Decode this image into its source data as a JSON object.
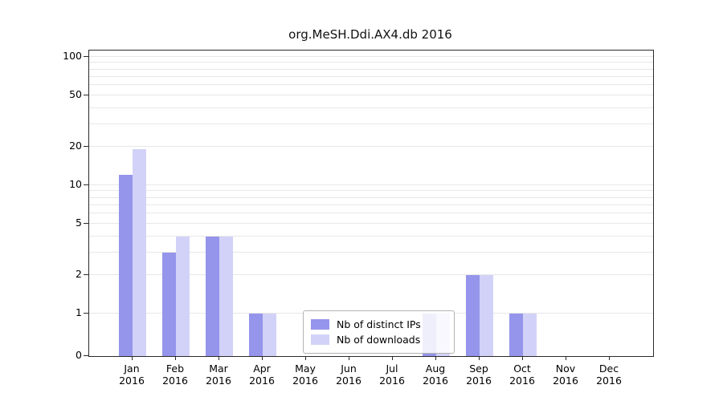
{
  "title": "org.MeSH.Ddi.AX4.db 2016",
  "colors": {
    "ips": "#9595ec",
    "downloads": "#d2d2f8",
    "grid": "#e7e7e7",
    "axis": "#2a2a2a"
  },
  "legend": {
    "items": [
      {
        "label": "Nb of distinct IPs",
        "series": "ips"
      },
      {
        "label": "Nb of downloads",
        "series": "downloads"
      }
    ]
  },
  "chart_data": {
    "type": "bar",
    "title": "org.MeSH.Ddi.AX4.db 2016",
    "xlabel": "",
    "ylabel": "",
    "year": "2016",
    "categories": [
      "Jan",
      "Feb",
      "Mar",
      "Apr",
      "May",
      "Jun",
      "Jul",
      "Aug",
      "Sep",
      "Oct",
      "Nov",
      "Dec"
    ],
    "series": [
      {
        "name": "Nb of distinct IPs",
        "values": [
          12,
          3,
          4,
          1,
          0,
          0,
          0,
          1,
          2,
          1,
          0,
          0
        ]
      },
      {
        "name": "Nb of downloads",
        "values": [
          19,
          4,
          4,
          1,
          0,
          0,
          0,
          1,
          2,
          1,
          0,
          0
        ]
      }
    ],
    "yscale": "log-with-zero-baseline",
    "yticks": [
      0,
      1,
      2,
      5,
      10,
      20,
      50,
      100
    ],
    "ylim": [
      0,
      100
    ],
    "grid": "horizontal-minor-log",
    "legend_position": "lower-center"
  }
}
